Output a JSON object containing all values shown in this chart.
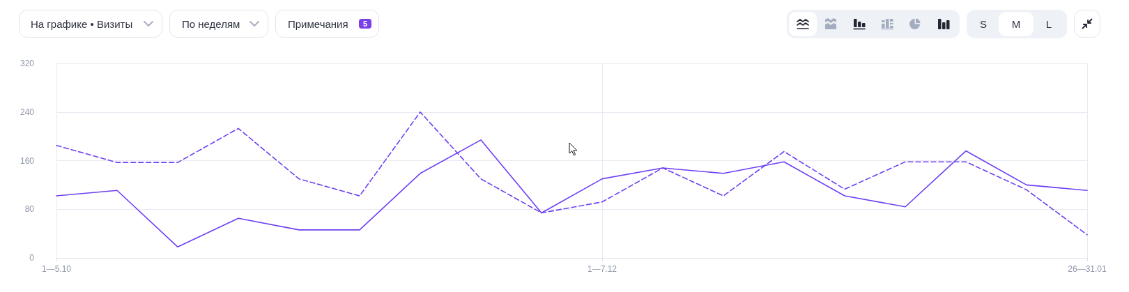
{
  "chart_data": {
    "type": "line",
    "categories": [
      "1—5.10",
      null,
      null,
      null,
      null,
      null,
      null,
      null,
      null,
      "1—7.12",
      null,
      null,
      null,
      null,
      null,
      null,
      null,
      "26—31.01"
    ],
    "series": [
      {
        "color": "#6e3ff3",
        "values": [
          102,
          111,
          18,
          65,
          46,
          46,
          139,
          194,
          74,
          130,
          148,
          139,
          158,
          102,
          84,
          176,
          120,
          111
        ]
      },
      {
        "color": "#6e3ff3",
        "line_style": "dashed",
        "values": [
          185,
          157,
          157,
          213,
          130,
          102,
          240,
          130,
          74,
          92,
          148,
          102,
          175,
          113,
          158,
          158,
          112,
          38
        ]
      }
    ],
    "ylim": [
      0,
      320
    ],
    "yticks": [
      0,
      80,
      160,
      240,
      320
    ],
    "grid": true,
    "line_style": "solid",
    "annotations": [
      "На графике • Визиты",
      "По неделям",
      "Примечания",
      "5",
      "S",
      "M",
      "L"
    ]
  }
}
